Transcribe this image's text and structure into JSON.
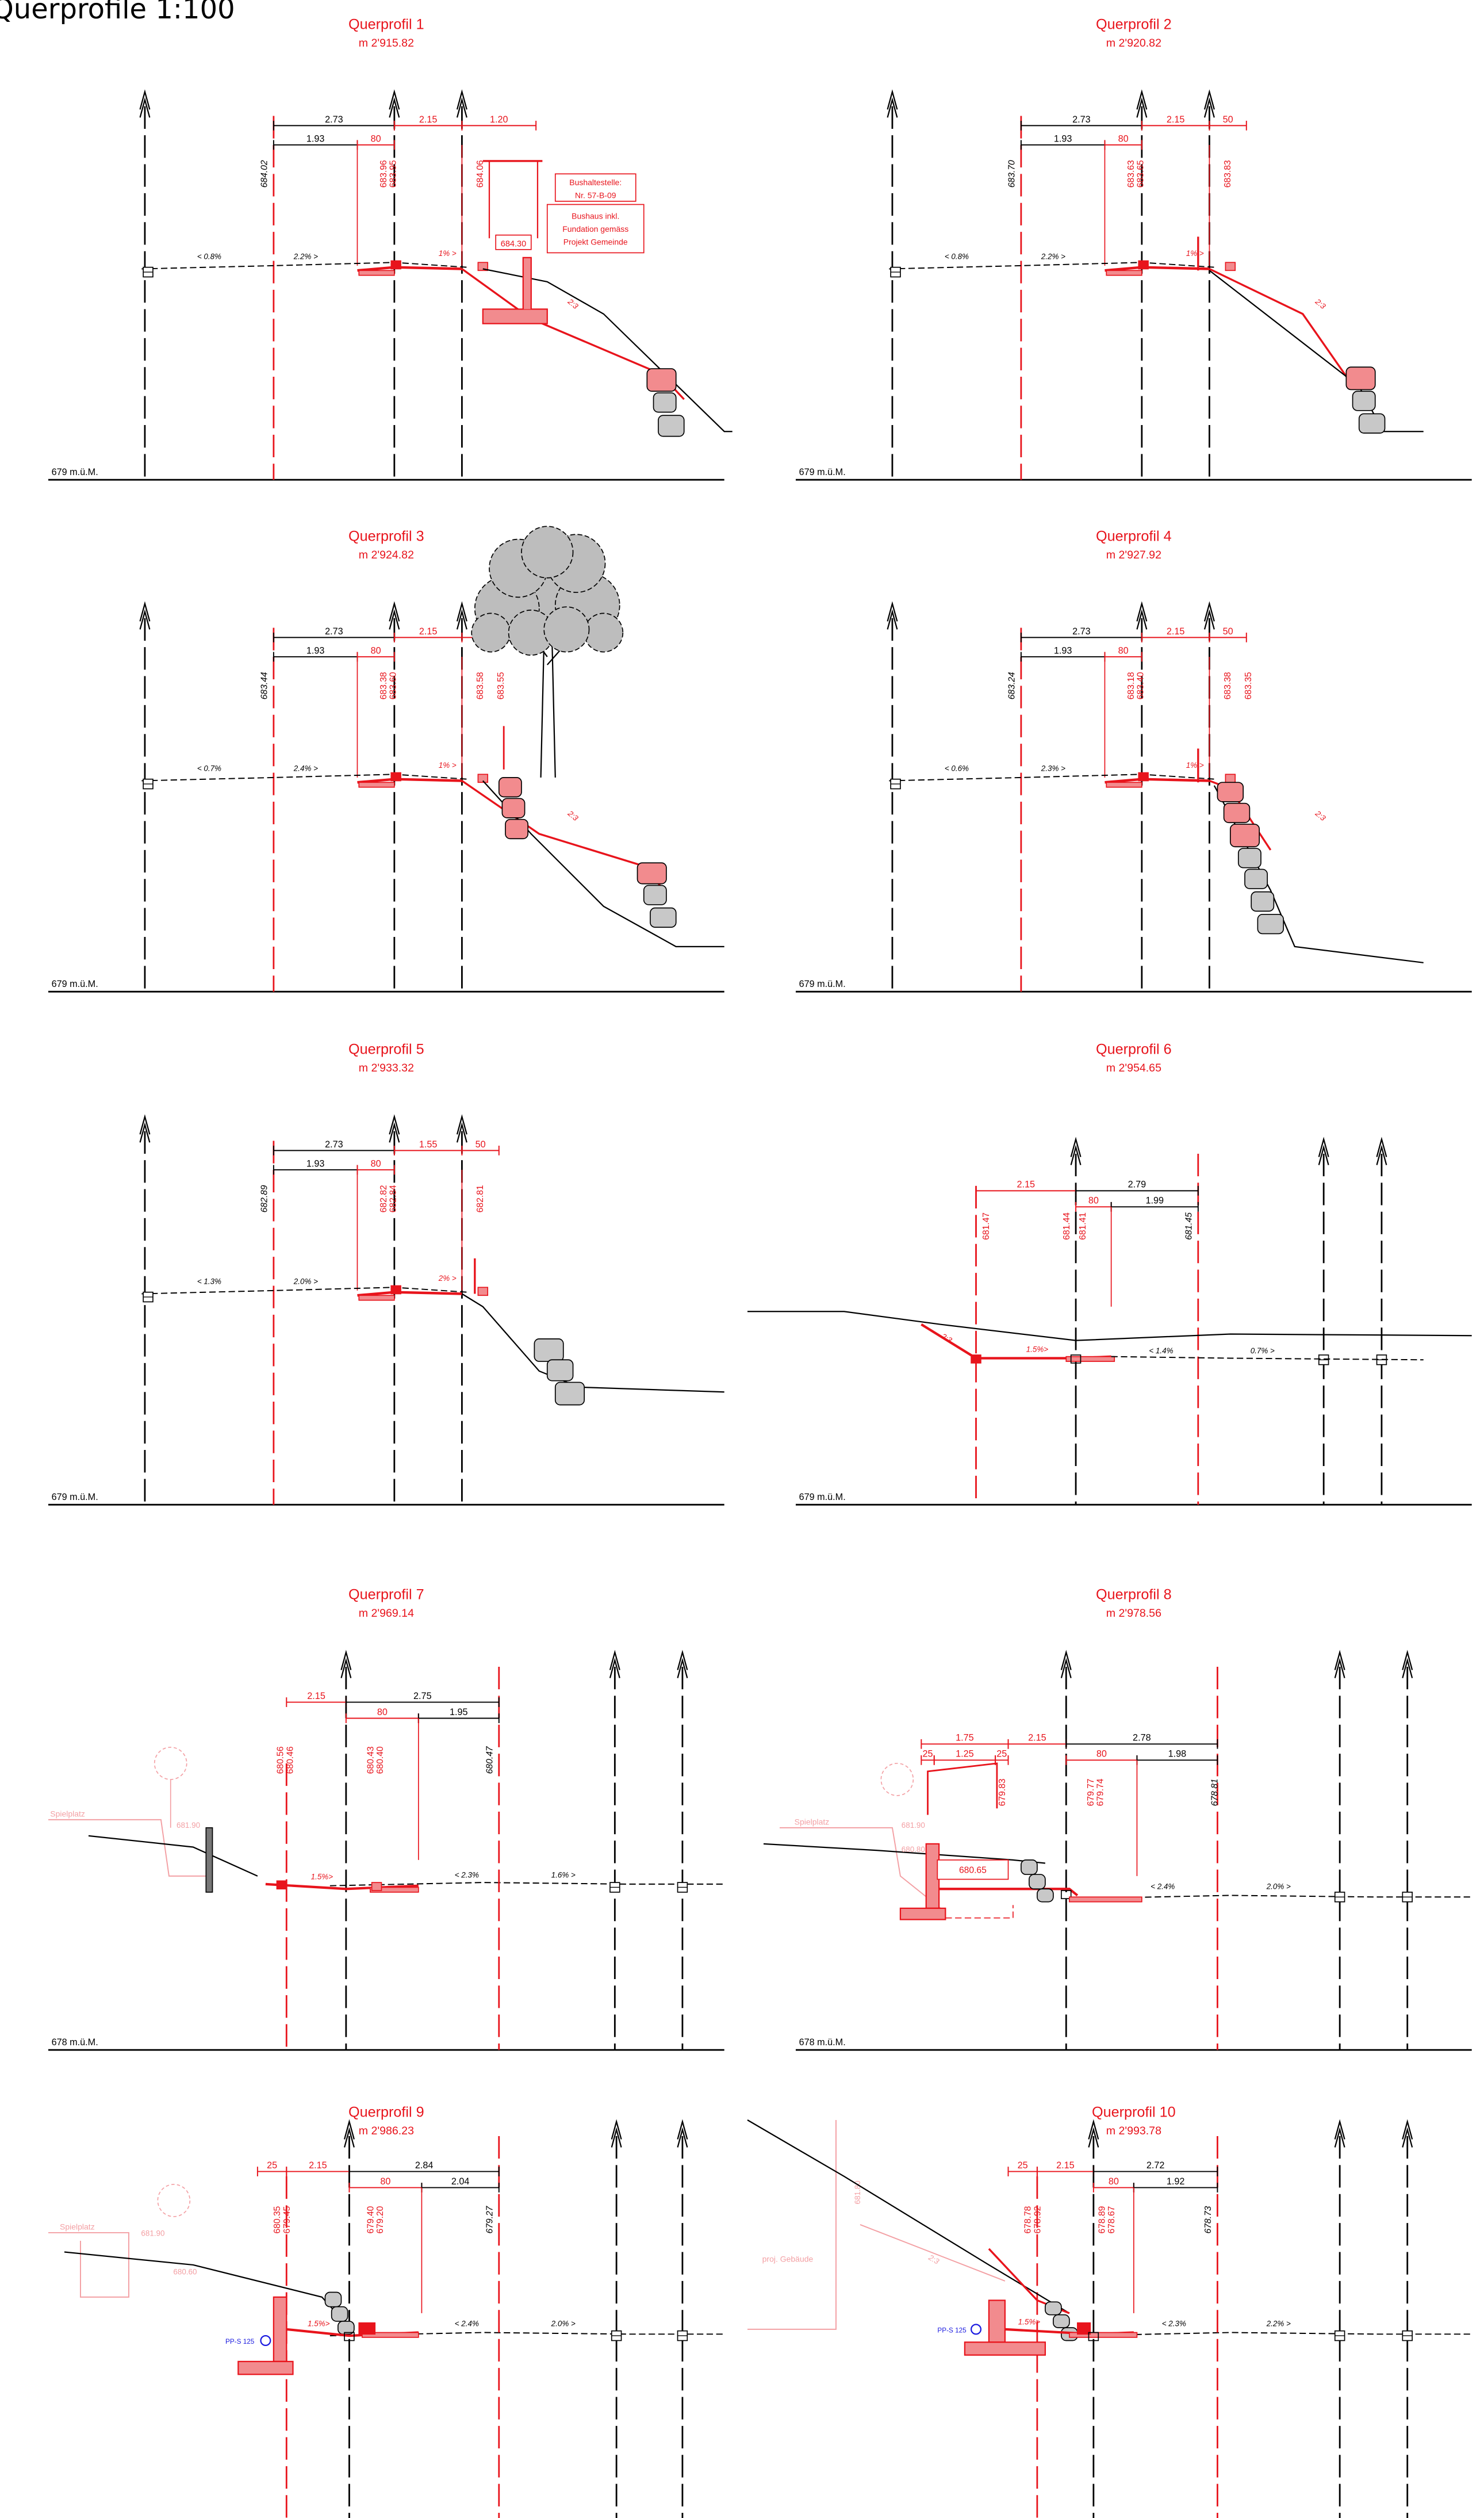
{
  "sheet_title": "Querprofile 1:100",
  "colors": {
    "project": "#e8141c",
    "existing": "#000000",
    "faded": "#f3a0a4",
    "fill": "#f28b8e",
    "rock": "#c8c8c8",
    "utility": "#1a1ae0"
  },
  "profiles": [
    {
      "id": 1,
      "title": "Querprofil 1",
      "station": "m 2'915.82",
      "datum": "679  m.ü.M.",
      "dims": [
        "2.73",
        "1.93",
        "80",
        "2.15",
        "1.20"
      ],
      "heights": [
        "684.02",
        "683.96",
        "683.95",
        "684.06"
      ],
      "slopes": [
        "< 0.8%",
        "2.2% >",
        "1% >",
        "2:3"
      ],
      "notes": [
        "684.30",
        "Bushaltestelle:",
        "Nr. 57-B-09",
        "Bushaus inkl.",
        "Fundation gemäss",
        "Projekt Gemeinde"
      ]
    },
    {
      "id": 2,
      "title": "Querprofil 2",
      "station": "m 2'920.82",
      "datum": "679  m.ü.M.",
      "dims": [
        "2.73",
        "1.93",
        "80",
        "2.15",
        "50"
      ],
      "heights": [
        "683.70",
        "683.63",
        "683.65",
        "683.83"
      ],
      "slopes": [
        "< 0.8%",
        "2.2% >",
        "1% >",
        "2:3"
      ],
      "notes": []
    },
    {
      "id": 3,
      "title": "Querprofil 3",
      "station": "m 2'924.82",
      "datum": "679  m.ü.M.",
      "dims": [
        "2.73",
        "1.93",
        "80",
        "2.15",
        "50"
      ],
      "heights": [
        "683.44",
        "683.38",
        "683.60",
        "683.58",
        "683.55"
      ],
      "slopes": [
        "< 0.7%",
        "2.4% >",
        "1% >",
        "2:3"
      ],
      "notes": []
    },
    {
      "id": 4,
      "title": "Querprofil 4",
      "station": "m 2'927.92",
      "datum": "679  m.ü.M.",
      "dims": [
        "2.73",
        "1.93",
        "80",
        "2.15",
        "50"
      ],
      "heights": [
        "683.24",
        "683.18",
        "683.40",
        "683.38",
        "683.35"
      ],
      "slopes": [
        "< 0.6%",
        "2.3% >",
        "1% >",
        "2:3"
      ],
      "notes": []
    },
    {
      "id": 5,
      "title": "Querprofil 5",
      "station": "m 2'933.32",
      "datum": "679  m.ü.M.",
      "dims": [
        "2.73",
        "1.93",
        "80",
        "1.55",
        "50"
      ],
      "heights": [
        "682.89",
        "682.82",
        "682.84",
        "682.81"
      ],
      "slopes": [
        "< 1.3%",
        "2.0% >",
        "2% >"
      ],
      "notes": []
    },
    {
      "id": 6,
      "title": "Querprofil 6",
      "station": "m 2'954.65",
      "datum": "679  m.ü.M.",
      "dims": [
        "2.15",
        "2.79",
        "80",
        "1.99"
      ],
      "heights": [
        "681.47",
        "681.44",
        "681.41",
        "681.45"
      ],
      "slopes": [
        "2:3",
        "1.5%>",
        "< 1.4%",
        "0.7% >"
      ],
      "notes": []
    },
    {
      "id": 7,
      "title": "Querprofil 7",
      "station": "m 2'969.14",
      "datum": "678  m.ü.M.",
      "dims": [
        "2.15",
        "2.75",
        "80",
        "1.95"
      ],
      "heights": [
        "680.56",
        "680.46",
        "680.43",
        "680.40",
        "680.47"
      ],
      "slopes": [
        "1.5%>",
        "< 2.3%",
        "1.6% >"
      ],
      "notes": [
        "Spielplatz",
        "681.90"
      ]
    },
    {
      "id": 8,
      "title": "Querprofil 8",
      "station": "m 2'978.56",
      "datum": "678  m.ü.M.",
      "dims": [
        "1.75",
        "25",
        "1.25",
        "25",
        "2.15",
        "2.78",
        "80",
        "1.98"
      ],
      "heights": [
        "679.83",
        "679.77",
        "679.74",
        "678.81"
      ],
      "slopes": [
        "< 2.4%",
        "2.0% >"
      ],
      "notes": [
        "680.65",
        "Spielplatz",
        "681.90",
        "680.80"
      ]
    },
    {
      "id": 9,
      "title": "Querprofil 9",
      "station": "m 2'986.23",
      "datum": "677  m.ü.M.",
      "dims": [
        "25",
        "2.15",
        "2.84",
        "80",
        "2.04"
      ],
      "heights": [
        "680.35",
        "679.45",
        "679.40",
        "679.20",
        "679.27"
      ],
      "slopes": [
        "1.5%>",
        "< 2.4%",
        "2.0% >"
      ],
      "notes": [
        "PP-S 125",
        "Spielplatz",
        "681.90",
        "680.60"
      ]
    },
    {
      "id": 10,
      "title": "Querprofil 10",
      "station": "m 2'993.78",
      "datum": "676  m.ü.M.",
      "dims": [
        "25",
        "2.15",
        "2.72",
        "80",
        "1.92"
      ],
      "heights": [
        "678.78",
        "678.92",
        "678.89",
        "678.67",
        "678.73"
      ],
      "slopes": [
        "1.5%>",
        "< 2.3%",
        "2.2% >",
        "2:3"
      ],
      "notes": [
        "PP-S 125",
        "proj. Gebäude",
        "681.80"
      ]
    }
  ]
}
